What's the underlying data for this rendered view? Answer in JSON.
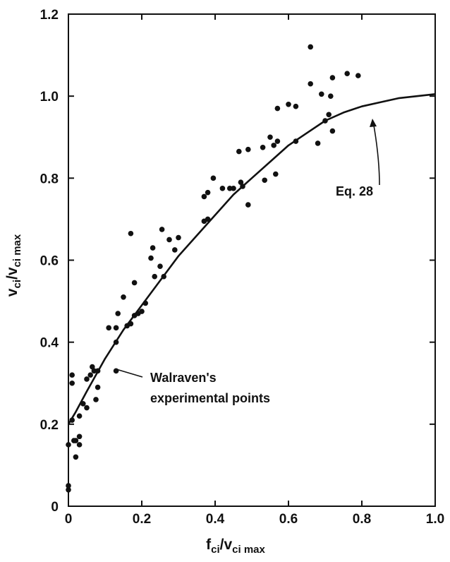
{
  "chart_data": {
    "type": "scatter",
    "x_axis": {
      "label_main": "f",
      "label_sub": "ci",
      "label_sep": "/v",
      "label_sub2": "ci max",
      "range": [
        0,
        1.0
      ],
      "ticks": [
        0,
        0.2,
        0.4,
        0.6,
        0.8,
        1.0
      ],
      "tick_labels": [
        "0",
        "0.2",
        "0.4",
        "0.6",
        "0.8",
        "1.0"
      ]
    },
    "y_axis": {
      "label_main": "v",
      "label_sub": "ci",
      "label_sep": "/v",
      "label_sub2": "ci max",
      "range": [
        0,
        1.2
      ],
      "ticks": [
        0,
        0.2,
        0.4,
        0.6,
        0.8,
        1.0,
        1.2
      ],
      "tick_labels": [
        "0",
        "0.2",
        "0.4",
        "0.6",
        "0.8",
        "1.0",
        "1.2"
      ]
    },
    "grid": false,
    "legend": "none",
    "annotations": {
      "walraven_line1": "Walraven's",
      "walraven_line2": "experimental points",
      "eq": "Eq. 28"
    },
    "curve": {
      "x": [
        0,
        0.02,
        0.05,
        0.1,
        0.15,
        0.2,
        0.25,
        0.3,
        0.35,
        0.4,
        0.45,
        0.5,
        0.55,
        0.6,
        0.65,
        0.7,
        0.75,
        0.8,
        0.85,
        0.9,
        0.95,
        1.0
      ],
      "y": [
        0.2,
        0.23,
        0.28,
        0.36,
        0.43,
        0.49,
        0.55,
        0.61,
        0.66,
        0.71,
        0.76,
        0.8,
        0.84,
        0.88,
        0.91,
        0.94,
        0.96,
        0.975,
        0.985,
        0.995,
        1.0,
        1.005
      ]
    },
    "points": [
      {
        "x": 0.0,
        "y": 0.04
      },
      {
        "x": 0.0,
        "y": 0.05
      },
      {
        "x": 0.0,
        "y": 0.15
      },
      {
        "x": 0.01,
        "y": 0.32
      },
      {
        "x": 0.01,
        "y": 0.3
      },
      {
        "x": 0.01,
        "y": 0.21
      },
      {
        "x": 0.015,
        "y": 0.16
      },
      {
        "x": 0.02,
        "y": 0.12
      },
      {
        "x": 0.02,
        "y": 0.16
      },
      {
        "x": 0.03,
        "y": 0.17
      },
      {
        "x": 0.03,
        "y": 0.15
      },
      {
        "x": 0.03,
        "y": 0.22
      },
      {
        "x": 0.04,
        "y": 0.25
      },
      {
        "x": 0.05,
        "y": 0.24
      },
      {
        "x": 0.05,
        "y": 0.31
      },
      {
        "x": 0.06,
        "y": 0.32
      },
      {
        "x": 0.065,
        "y": 0.34
      },
      {
        "x": 0.07,
        "y": 0.33
      },
      {
        "x": 0.075,
        "y": 0.26
      },
      {
        "x": 0.08,
        "y": 0.29
      },
      {
        "x": 0.08,
        "y": 0.33
      },
      {
        "x": 0.11,
        "y": 0.435
      },
      {
        "x": 0.13,
        "y": 0.33
      },
      {
        "x": 0.13,
        "y": 0.4
      },
      {
        "x": 0.13,
        "y": 0.435
      },
      {
        "x": 0.135,
        "y": 0.47
      },
      {
        "x": 0.15,
        "y": 0.51
      },
      {
        "x": 0.16,
        "y": 0.44
      },
      {
        "x": 0.17,
        "y": 0.665
      },
      {
        "x": 0.17,
        "y": 0.445
      },
      {
        "x": 0.18,
        "y": 0.545
      },
      {
        "x": 0.18,
        "y": 0.465
      },
      {
        "x": 0.19,
        "y": 0.47
      },
      {
        "x": 0.2,
        "y": 0.475
      },
      {
        "x": 0.21,
        "y": 0.495
      },
      {
        "x": 0.225,
        "y": 0.605
      },
      {
        "x": 0.23,
        "y": 0.63
      },
      {
        "x": 0.235,
        "y": 0.56
      },
      {
        "x": 0.25,
        "y": 0.585
      },
      {
        "x": 0.255,
        "y": 0.675
      },
      {
        "x": 0.26,
        "y": 0.56
      },
      {
        "x": 0.275,
        "y": 0.65
      },
      {
        "x": 0.29,
        "y": 0.625
      },
      {
        "x": 0.3,
        "y": 0.655
      },
      {
        "x": 0.37,
        "y": 0.755
      },
      {
        "x": 0.37,
        "y": 0.695
      },
      {
        "x": 0.38,
        "y": 0.765
      },
      {
        "x": 0.38,
        "y": 0.7
      },
      {
        "x": 0.395,
        "y": 0.8
      },
      {
        "x": 0.42,
        "y": 0.775
      },
      {
        "x": 0.44,
        "y": 0.775
      },
      {
        "x": 0.45,
        "y": 0.775
      },
      {
        "x": 0.465,
        "y": 0.865
      },
      {
        "x": 0.47,
        "y": 0.79
      },
      {
        "x": 0.475,
        "y": 0.78
      },
      {
        "x": 0.49,
        "y": 0.87
      },
      {
        "x": 0.49,
        "y": 0.735
      },
      {
        "x": 0.53,
        "y": 0.875
      },
      {
        "x": 0.535,
        "y": 0.795
      },
      {
        "x": 0.55,
        "y": 0.9
      },
      {
        "x": 0.56,
        "y": 0.88
      },
      {
        "x": 0.565,
        "y": 0.81
      },
      {
        "x": 0.57,
        "y": 0.97
      },
      {
        "x": 0.57,
        "y": 0.89
      },
      {
        "x": 0.6,
        "y": 0.98
      },
      {
        "x": 0.62,
        "y": 0.975
      },
      {
        "x": 0.62,
        "y": 0.89
      },
      {
        "x": 0.66,
        "y": 1.12
      },
      {
        "x": 0.66,
        "y": 1.03
      },
      {
        "x": 0.68,
        "y": 0.885
      },
      {
        "x": 0.69,
        "y": 1.005
      },
      {
        "x": 0.7,
        "y": 0.94
      },
      {
        "x": 0.71,
        "y": 0.955
      },
      {
        "x": 0.715,
        "y": 1.0
      },
      {
        "x": 0.72,
        "y": 1.045
      },
      {
        "x": 0.72,
        "y": 0.915
      },
      {
        "x": 0.76,
        "y": 1.055
      },
      {
        "x": 0.79,
        "y": 1.05
      }
    ]
  }
}
